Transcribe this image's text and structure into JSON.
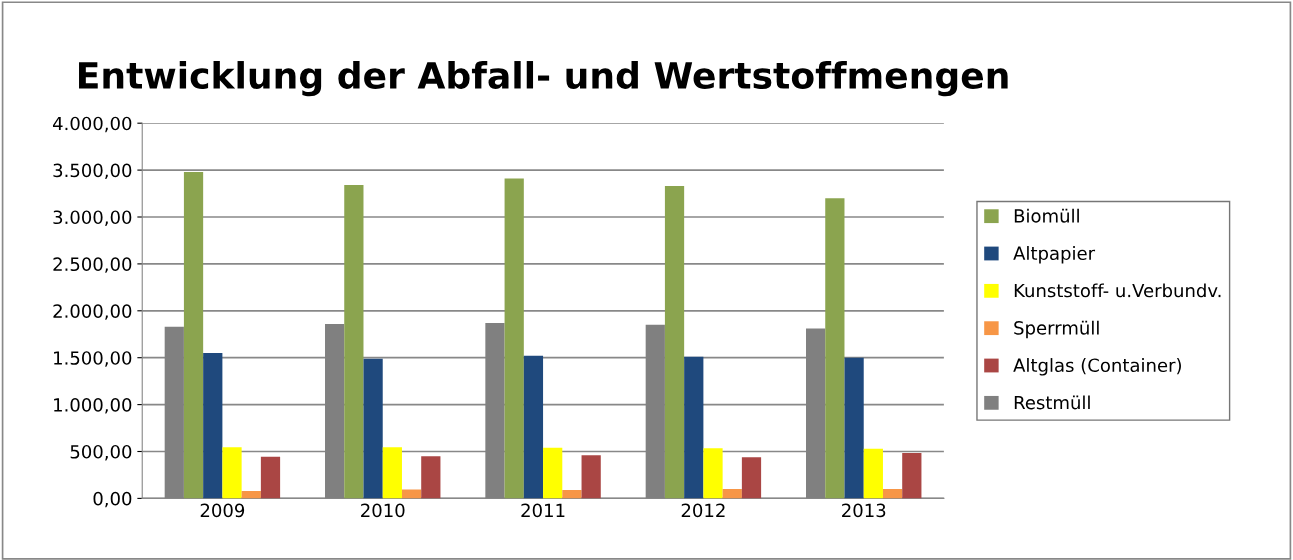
{
  "chart_data": {
    "type": "bar",
    "title": "Entwicklung der Abfall- und Wertstoffmengen",
    "categories": [
      "2009",
      "2010",
      "2011",
      "2012",
      "2013"
    ],
    "series": [
      {
        "name": "Restmüll",
        "color": "#808080",
        "values": [
          1830,
          1860,
          1870,
          1850,
          1810
        ]
      },
      {
        "name": "Biomüll",
        "color": "#8ba44f",
        "values": [
          3480,
          3340,
          3410,
          3330,
          3200
        ]
      },
      {
        "name": "Altpapier",
        "color": "#1f497d",
        "values": [
          1550,
          1490,
          1520,
          1510,
          1500
        ]
      },
      {
        "name": "Kunststoff- u.Verbundv.",
        "color": "#ffff00",
        "values": [
          545,
          545,
          540,
          535,
          530
        ]
      },
      {
        "name": "Sperrmüll",
        "color": "#f79646",
        "values": [
          80,
          95,
          90,
          100,
          100
        ]
      },
      {
        "name": "Altglas (Container)",
        "color": "#aa4644",
        "values": [
          445,
          450,
          460,
          440,
          485
        ]
      }
    ],
    "ylim": [
      0,
      4000
    ],
    "yticks": [
      {
        "value": 0,
        "label": "0,00"
      },
      {
        "value": 500,
        "label": "500,00"
      },
      {
        "value": 1000,
        "label": "1.000,00"
      },
      {
        "value": 1500,
        "label": "1.500,00"
      },
      {
        "value": 2000,
        "label": "2.000,00"
      },
      {
        "value": 2500,
        "label": "2.500,00"
      },
      {
        "value": 3000,
        "label": "3.000,00"
      },
      {
        "value": 3500,
        "label": "3.500,00"
      },
      {
        "value": 4000,
        "label": "4.000,00"
      }
    ],
    "grid": "y",
    "legend": "right"
  }
}
